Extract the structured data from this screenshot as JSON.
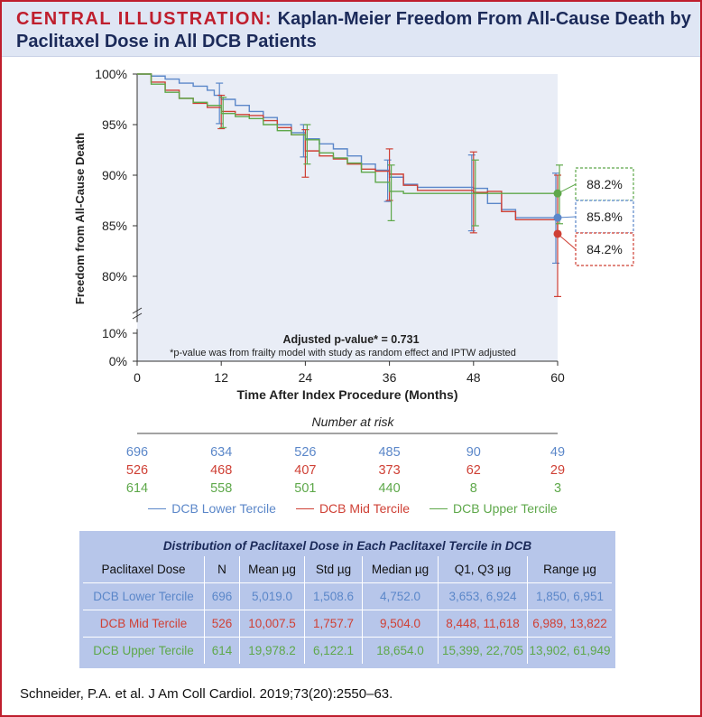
{
  "header": {
    "label": "CENTRAL ILLUSTRATION:",
    "title_line1": "Kaplan-Meier Freedom From All-Cause Death by",
    "title_line2": "Paclitaxel Dose in All DCB Patients"
  },
  "colors": {
    "lower": "#5b87c9",
    "mid": "#cf4035",
    "upper": "#5ea84a",
    "plot_bg": "#e9edf6",
    "header_bg": "#dfe6f4",
    "table_bg": "#b7c6ea",
    "accent": "#bf1e2d",
    "navy": "#1b2a59"
  },
  "chart_data": {
    "type": "line",
    "ylabel": "Freedom from All-Cause Death",
    "xlabel": "Time After Index Procedure (Months)",
    "x_ticks": [
      "0",
      "12",
      "24",
      "36",
      "48",
      "60"
    ],
    "y_ticks_upper": [
      "100%",
      "95%",
      "90%",
      "85%",
      "80%"
    ],
    "y_ticks_lower": [
      "10%",
      "0%"
    ],
    "ylim_upper": [
      76,
      100
    ],
    "ylim_lower": [
      0,
      10
    ],
    "xlim": [
      0,
      60
    ],
    "annotation": "Adjusted p-value* = 0.731",
    "footnote": "*p-value was from frailty model with study as random effect and IPTW adjusted",
    "end_labels": [
      "88.2%",
      "85.8%",
      "84.2%"
    ],
    "series": [
      {
        "name": "DCB Lower Tercile",
        "points": [
          [
            0,
            100
          ],
          [
            2,
            99.8
          ],
          [
            4,
            99.5
          ],
          [
            6,
            99.1
          ],
          [
            8,
            98.8
          ],
          [
            10,
            98.4
          ],
          [
            11,
            97.9
          ],
          [
            12,
            97.5
          ],
          [
            14,
            96.9
          ],
          [
            16,
            96.3
          ],
          [
            18,
            95.7
          ],
          [
            20,
            95.0
          ],
          [
            22,
            94.2
          ],
          [
            24,
            93.6
          ],
          [
            26,
            93.1
          ],
          [
            28,
            92.6
          ],
          [
            30,
            91.9
          ],
          [
            32,
            91.1
          ],
          [
            34,
            90.5
          ],
          [
            36,
            89.8
          ],
          [
            38,
            89.1
          ],
          [
            40,
            88.8
          ],
          [
            44,
            88.8
          ],
          [
            48,
            88.7
          ],
          [
            50,
            87.2
          ],
          [
            52,
            86.6
          ],
          [
            54,
            85.8
          ],
          [
            60,
            85.8
          ]
        ],
        "errorbars": [
          [
            12,
            97.5,
            95.1,
            99.1
          ],
          [
            24,
            93.6,
            91.8,
            95.0
          ],
          [
            36,
            89.8,
            87.4,
            91.5
          ],
          [
            48,
            88.6,
            84.5,
            92.0
          ],
          [
            60,
            85.8,
            81.3,
            90.2
          ]
        ]
      },
      {
        "name": "DCB Mid Tercile",
        "points": [
          [
            0,
            100
          ],
          [
            2,
            99.2
          ],
          [
            4,
            98.4
          ],
          [
            6,
            97.6
          ],
          [
            8,
            97.1
          ],
          [
            10,
            96.7
          ],
          [
            12,
            96.3
          ],
          [
            14,
            96.0
          ],
          [
            16,
            95.9
          ],
          [
            18,
            95.4
          ],
          [
            20,
            94.7
          ],
          [
            22,
            94.0
          ],
          [
            24,
            92.4
          ],
          [
            26,
            91.9
          ],
          [
            28,
            91.6
          ],
          [
            30,
            91.1
          ],
          [
            32,
            90.6
          ],
          [
            34,
            90.4
          ],
          [
            36,
            90.1
          ],
          [
            38,
            89.0
          ],
          [
            40,
            88.5
          ],
          [
            44,
            88.5
          ],
          [
            48,
            88.3
          ],
          [
            50,
            88.4
          ],
          [
            52,
            86.4
          ],
          [
            54,
            85.6
          ],
          [
            58,
            85.6
          ],
          [
            60,
            84.2
          ]
        ],
        "errorbars": [
          [
            12,
            96.3,
            94.6,
            97.9
          ],
          [
            24,
            92.4,
            89.8,
            94.5
          ],
          [
            36,
            90.1,
            87.5,
            92.6
          ],
          [
            48,
            88.3,
            84.3,
            92.3
          ],
          [
            60,
            84.2,
            78.0,
            90.0
          ]
        ]
      },
      {
        "name": "DCB Upper Tercile",
        "points": [
          [
            0,
            100
          ],
          [
            2,
            99.0
          ],
          [
            4,
            98.2
          ],
          [
            6,
            97.6
          ],
          [
            8,
            97.2
          ],
          [
            10,
            96.9
          ],
          [
            12,
            96.1
          ],
          [
            14,
            95.8
          ],
          [
            16,
            95.6
          ],
          [
            18,
            95.0
          ],
          [
            20,
            94.4
          ],
          [
            22,
            94.0
          ],
          [
            24,
            93.5
          ],
          [
            26,
            92.2
          ],
          [
            28,
            91.7
          ],
          [
            30,
            91.2
          ],
          [
            32,
            90.3
          ],
          [
            34,
            89.3
          ],
          [
            36,
            88.4
          ],
          [
            38,
            88.2
          ],
          [
            60,
            88.2
          ]
        ],
        "errorbars": [
          [
            12,
            96.1,
            94.7,
            97.7
          ],
          [
            24,
            93.5,
            91.1,
            95.0
          ],
          [
            36,
            88.4,
            85.5,
            91.0
          ],
          [
            48,
            88.2,
            85.0,
            91.5
          ],
          [
            60,
            88.2,
            85.2,
            91.0
          ]
        ]
      }
    ]
  },
  "risk": {
    "title": "Number at risk",
    "rows": [
      {
        "key": "lower",
        "values": [
          "696",
          "634",
          "526",
          "485",
          "90",
          "49"
        ]
      },
      {
        "key": "mid",
        "values": [
          "526",
          "468",
          "407",
          "373",
          "62",
          "29"
        ]
      },
      {
        "key": "upper",
        "values": [
          "614",
          "558",
          "501",
          "440",
          "8",
          "3"
        ]
      }
    ]
  },
  "legend": [
    "DCB Lower Tercile",
    "DCB Mid Tercile",
    "DCB Upper Tercile"
  ],
  "dose_table": {
    "title": "Distribution of Paclitaxel Dose in Each Paclitaxel Tercile in DCB",
    "headers": [
      "Paclitaxel Dose",
      "N",
      "Mean µg",
      "Std µg",
      "Median µg",
      "Q1, Q3 µg",
      "Range µg"
    ],
    "rows": [
      [
        "DCB Lower Tercile",
        "696",
        "5,019.0",
        "1,508.6",
        "4,752.0",
        "3,653, 6,924",
        "1,850, 6,951"
      ],
      [
        "DCB Mid Tercile",
        "526",
        "10,007.5",
        "1,757.7",
        "9,504.0",
        "8,448, 11,618",
        "6,989, 13,822"
      ],
      [
        "DCB Upper Tercile",
        "614",
        "19,978.2",
        "6,122.1",
        "18,654.0",
        "15,399, 22,705",
        "13,902, 61,949"
      ]
    ]
  },
  "citation": "Schneider, P.A. et al. J Am Coll Cardiol. 2019;73(20):2550–63."
}
